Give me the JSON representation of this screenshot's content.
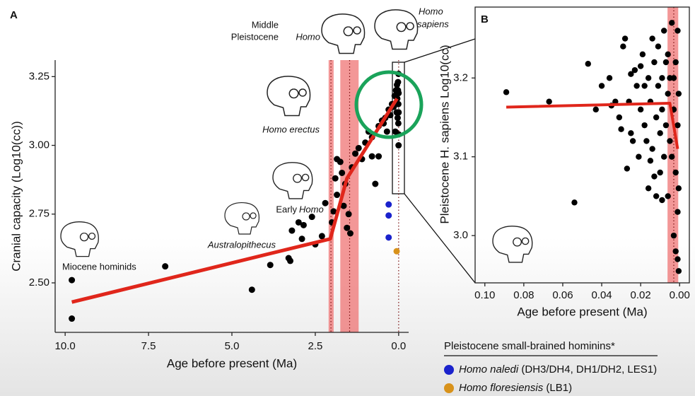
{
  "chart_data": [
    {
      "type": "scatter",
      "panel": "A",
      "x_label": "Age before present (Ma)",
      "y_label": "Cranial capacity (Log10(cc))",
      "xlim": [
        10.3,
        -0.3
      ],
      "ylim": [
        2.32,
        3.31
      ],
      "xticks": [
        {
          "value": 10,
          "label": "10.0"
        },
        7.5,
        {
          "value": 5,
          "label": "5.0"
        },
        2.5,
        {
          "value": 0,
          "label": "0.0"
        }
      ],
      "yticks": [
        {
          "value": 2.5,
          "label": "2.50"
        },
        2.75,
        {
          "value": 3,
          "label": "3.00"
        },
        3.25
      ],
      "annotations": [
        "Middle",
        "Pleistocene",
        "Homo",
        "Homo",
        "sapiens",
        "Homo erectus",
        "Early",
        "Homo",
        "Australopithecus",
        "Miocene hominids"
      ],
      "bands": [
        {
          "start": 2.1,
          "end": 1.95
        },
        {
          "start": 1.75,
          "end": 1.2
        }
      ],
      "dotted_lines": [
        2.03,
        1.47,
        0.0
      ],
      "trend": {
        "color": "#e0261b",
        "x": [
          9.8,
          2.05,
          1.55,
          0.05
        ],
        "values": [
          2.43,
          2.66,
          2.88,
          3.17
        ]
      },
      "legend_title": "Pleistocene small-brained hominins*",
      "series": [
        {
          "color": "#000000",
          "x": [
            9.8,
            9.8,
            7.0,
            4.4,
            3.85,
            3.3,
            3.25,
            3.2,
            3.0,
            2.9,
            2.85,
            2.6,
            2.5,
            2.2,
            2.0,
            1.95,
            1.9,
            1.85,
            1.75,
            1.7,
            1.6,
            1.55,
            1.5,
            1.45,
            1.4,
            1.3,
            1.2,
            1.1,
            1.0,
            0.9,
            0.8,
            0.7,
            0.6,
            0.5,
            0.4,
            0.35,
            0.3,
            0.25,
            0.2,
            0.15,
            0.12,
            0.1,
            0.08,
            0.06,
            0.05,
            0.04,
            0.03,
            0.02,
            0.02,
            0.01,
            0.01,
            0.005,
            0.003,
            0.002,
            0.001,
            0.001,
            0.8,
            0.6,
            0.45,
            2.3,
            1.85,
            1.65
          ],
          "values": [
            2.51,
            2.37,
            2.56,
            2.475,
            2.565,
            2.59,
            2.58,
            2.69,
            2.72,
            2.66,
            2.71,
            2.74,
            2.64,
            2.79,
            2.72,
            2.76,
            2.88,
            2.95,
            2.94,
            2.9,
            2.86,
            2.7,
            2.75,
            2.68,
            2.92,
            2.97,
            2.99,
            2.95,
            3.01,
            3.05,
            3.03,
            2.86,
            3.07,
            3.09,
            3.1,
            3.05,
            3.13,
            3.11,
            3.15,
            3.14,
            3.18,
            3.05,
            3.2,
            3.12,
            3.22,
            3.17,
            3.1,
            3.23,
            3.2,
            3.15,
            3.08,
            3.26,
            3.0,
            3.19,
            3.12,
            3.04,
            2.96,
            2.96,
            3.08,
            2.67,
            2.82,
            2.78
          ]
        },
        {
          "name": "Homo naledi",
          "detail": "(DH3/DH4, DH1/DH2, LES1)",
          "color": "#1a22cc",
          "x": [
            0.3,
            0.3,
            0.3
          ],
          "values": [
            2.785,
            2.745,
            2.665
          ]
        },
        {
          "name": "Homo floresiensis",
          "detail": "(LB1)",
          "color": "#d8921b",
          "x": [
            0.06
          ],
          "values": [
            2.615
          ]
        }
      ]
    },
    {
      "type": "scatter",
      "panel": "B",
      "x_label": "Age before present (Ma)",
      "y_label": "Pleistocene H. sapiens Log10(cc)",
      "xlim": [
        0.105,
        -0.005
      ],
      "ylim": [
        2.94,
        3.29
      ],
      "xticks": [
        {
          "value": 0.1,
          "label": "0.10"
        },
        0.08,
        0.06,
        0.04,
        0.02,
        {
          "value": 0,
          "label": "0.00"
        }
      ],
      "yticks": [
        {
          "value": 3,
          "label": "3.0"
        },
        3.1,
        3.2
      ],
      "bands": [
        {
          "start": 0.0062,
          "end": 0.0007
        }
      ],
      "dotted_lines": [
        0.003
      ],
      "trend": {
        "color": "#e0261b",
        "x": [
          0.089,
          0.005,
          0.001
        ],
        "values": [
          3.163,
          3.168,
          3.11
        ]
      },
      "series": [
        {
          "color": "#000000",
          "x": [
            0.089,
            0.067,
            0.054,
            0.047,
            0.04,
            0.036,
            0.035,
            0.033,
            0.031,
            0.029,
            0.028,
            0.027,
            0.026,
            0.025,
            0.024,
            0.023,
            0.022,
            0.021,
            0.02,
            0.019,
            0.018,
            0.017,
            0.016,
            0.016,
            0.015,
            0.014,
            0.014,
            0.013,
            0.012,
            0.012,
            0.011,
            0.011,
            0.01,
            0.01,
            0.009,
            0.009,
            0.008,
            0.008,
            0.007,
            0.007,
            0.006,
            0.006,
            0.005,
            0.005,
            0.004,
            0.004,
            0.003,
            0.003,
            0.002,
            0.002,
            0.002,
            0.001,
            0.001,
            0.001,
            0.001,
            0.0005,
            0.0005,
            0.0005,
            0.025,
            0.03,
            0.018,
            0.013,
            0.006,
            0.003,
            0.043,
            0.02,
            0.015,
            0.009
          ],
          "values": [
            3.182,
            3.17,
            3.042,
            3.218,
            3.19,
            3.2,
            3.165,
            3.17,
            3.15,
            3.24,
            3.25,
            3.085,
            3.17,
            3.13,
            3.12,
            3.21,
            3.19,
            3.1,
            3.16,
            3.23,
            3.14,
            3.12,
            3.2,
            3.06,
            3.17,
            3.25,
            3.11,
            3.22,
            3.15,
            3.05,
            3.19,
            3.24,
            3.13,
            3.08,
            3.2,
            3.16,
            3.26,
            3.1,
            3.14,
            3.22,
            3.18,
            3.05,
            3.2,
            3.12,
            3.27,
            3.1,
            3.16,
            3.0,
            3.22,
            3.08,
            2.98,
            3.26,
            3.14,
            3.03,
            2.97,
            3.18,
            2.955,
            3.06,
            3.205,
            3.135,
            3.19,
            3.075,
            3.23,
            3.2,
            3.16,
            3.215,
            3.095,
            3.045
          ]
        }
      ]
    }
  ]
}
